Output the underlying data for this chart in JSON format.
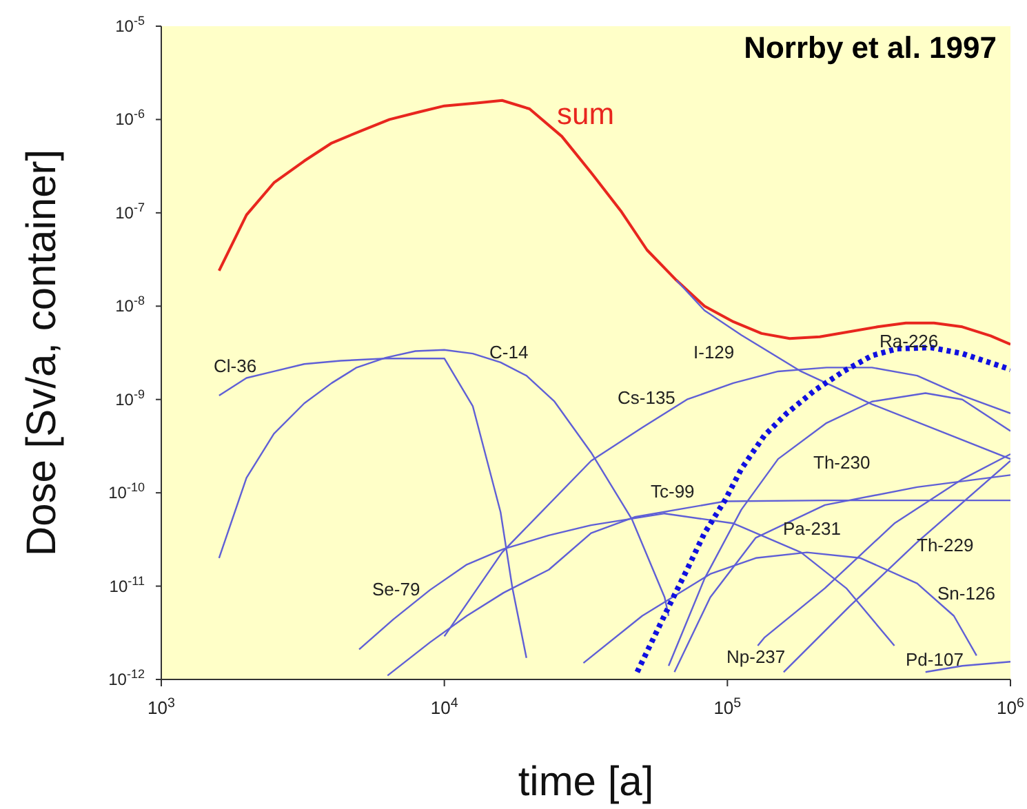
{
  "chart_data": {
    "type": "line",
    "xlabel": "time [a]",
    "ylabel": "Dose [Sv/a, container]",
    "log": "xy",
    "grid": false,
    "legend": false,
    "marker": "none",
    "xlim": [
      1000,
      1000000
    ],
    "xticks": [
      {
        "value": 1000,
        "label": "10$^{3}$"
      },
      {
        "value": 10000,
        "label": "10$^{4}$"
      },
      {
        "value": 100000,
        "label": "10$^{5}$"
      },
      {
        "value": 1000000,
        "label": "10$^{6}$"
      }
    ],
    "ylim": [
      1e-12,
      1e-05
    ],
    "yticks": [
      {
        "value": 1e-12,
        "label": "10$^{-12}$"
      },
      {
        "value": 1e-11,
        "label": "10$^{-11}$"
      },
      {
        "value": 1e-10,
        "label": "10$^{-10}$"
      },
      {
        "value": 1e-09,
        "label": "10$^{-9}$"
      },
      {
        "value": 1e-08,
        "label": "10$^{-8}$"
      },
      {
        "value": 1e-07,
        "label": "10$^{-7}$"
      },
      {
        "value": 1e-06,
        "label": "10$^{-6}$"
      },
      {
        "value": 1e-05,
        "label": "10$^{-5}$"
      }
    ],
    "annotations": [
      "Norrby et al. 1997"
    ],
    "series": [
      {
        "name": "sum",
        "color": "#e8261e",
        "line_style": "solid",
        "x": [
          1600,
          2000,
          2500,
          3200,
          4000,
          5100,
          6400,
          8100,
          10000,
          13000,
          16000,
          20000,
          26000,
          33000,
          42000,
          52000,
          66000,
          83000,
          105000,
          132000,
          166000,
          212000,
          339000,
          427000,
          537000,
          676000,
          851000,
          1000000
        ],
        "values": [
          2.4e-08,
          9.5e-08,
          2.1e-07,
          3.6e-07,
          5.6e-07,
          7.6e-07,
          1e-06,
          1.2e-06,
          1.4e-06,
          1.5e-06,
          1.6e-06,
          1.3e-06,
          6.6e-07,
          2.7e-07,
          1.05e-07,
          4e-08,
          1.9e-08,
          1e-08,
          6.8e-09,
          5.1e-09,
          4.5e-09,
          4.7e-09,
          6e-09,
          6.6e-09,
          6.6e-09,
          6e-09,
          4.8e-09,
          3.9e-09
        ]
      },
      {
        "name": "Cl-36",
        "color": "#5f5fd6",
        "line_style": "solid",
        "x": [
          1600,
          2000,
          2500,
          3200,
          4300,
          6200,
          10000,
          12600,
          15800,
          17400,
          19500
        ],
        "values": [
          1.1e-09,
          1.7e-09,
          2e-09,
          2.4e-09,
          2.6e-09,
          2.75e-09,
          2.75e-09,
          8.5e-10,
          6.2e-11,
          9.5e-12,
          1.7e-12
        ]
      },
      {
        "name": "C-14",
        "color": "#5f5fd6",
        "line_style": "solid",
        "x": [
          1600,
          2000,
          2500,
          3200,
          4000,
          4900,
          6200,
          7900,
          10000,
          12600,
          15800,
          19500,
          24500,
          33000,
          46000,
          60000,
          62000
        ],
        "values": [
          2e-11,
          1.45e-10,
          4.3e-10,
          9.1e-10,
          1.5e-09,
          2.2e-09,
          2.8e-09,
          3.3e-09,
          3.4e-09,
          3.1e-09,
          2.5e-09,
          1.8e-09,
          9.5e-10,
          2.7e-10,
          5.2e-11,
          7.6e-12,
          4.8e-12
        ]
      },
      {
        "name": "I-129",
        "color": "#5f5fd6",
        "line_style": "solid",
        "x": [
          66000,
          83000,
          112000,
          182000,
          324000,
          562000,
          1000000
        ],
        "values": [
          1.9e-08,
          9e-09,
          4.9e-09,
          2e-09,
          8.9e-10,
          4.6e-10,
          2.3e-10
        ]
      },
      {
        "name": "Cs-135",
        "color": "#5f5fd6",
        "line_style": "solid",
        "x": [
          10000,
          16000,
          33000,
          50000,
          72000,
          105000,
          151000,
          224000,
          324000,
          468000,
          676000,
          1000000
        ],
        "values": [
          2.9e-12,
          2.3e-11,
          2.2e-10,
          5e-10,
          1e-09,
          1.5e-09,
          2e-09,
          2.2e-09,
          2.2e-09,
          1.8e-09,
          1.1e-09,
          7.1e-10
        ]
      },
      {
        "name": "Th-230",
        "color": "#5f5fd6",
        "line_style": "solid",
        "x": [
          62000,
          83000,
          112000,
          151000,
          224000,
          324000,
          501000,
          676000,
          1000000
        ],
        "values": [
          1.4e-12,
          1.2e-11,
          6.6e-11,
          2.3e-10,
          5.6e-10,
          9.5e-10,
          1.17e-09,
          1e-09,
          4.6e-10
        ]
      },
      {
        "name": "Tc-99",
        "color": "#5f5fd6",
        "line_style": "solid",
        "x": [
          6300,
          8900,
          12000,
          16200,
          23400,
          33000,
          47000,
          98000,
          224000,
          1000000
        ],
        "values": [
          1.1e-12,
          2.5e-12,
          4.8e-12,
          8.5e-12,
          1.5e-11,
          3.7e-11,
          5.5e-11,
          8.1e-11,
          8.3e-11,
          8.3e-11
        ]
      },
      {
        "name": "Se-79",
        "color": "#5f5fd6",
        "line_style": "solid",
        "x": [
          5000,
          6600,
          8900,
          12000,
          16200,
          23400,
          33000,
          60000,
          105000,
          182000,
          263000,
          389000
        ],
        "values": [
          2.1e-12,
          4.4e-12,
          9.1e-12,
          1.7e-11,
          2.5e-11,
          3.5e-11,
          4.5e-11,
          6e-11,
          4.7e-11,
          2.3e-11,
          9.5e-12,
          2.3e-12
        ]
      },
      {
        "name": "Sn-126",
        "color": "#5f5fd6",
        "line_style": "solid",
        "x": [
          31000,
          50000,
          87000,
          126000,
          191000,
          295000,
          468000,
          631000,
          759000
        ],
        "values": [
          1.5e-12,
          4.8e-12,
          1.35e-11,
          2e-11,
          2.3e-11,
          2e-11,
          1.07e-11,
          4.8e-12,
          1.8e-12
        ]
      },
      {
        "name": "Pa-231",
        "color": "#5f5fd6",
        "line_style": "solid",
        "x": [
          65000,
          87000,
          126000,
          221000,
          468000,
          1000000
        ],
        "values": [
          1.2e-12,
          7.6e-12,
          3.3e-11,
          7.4e-11,
          1.15e-10,
          1.55e-10
        ]
      },
      {
        "name": "Np-237",
        "color": "#5f5fd6",
        "line_style": "solid",
        "x": [
          128000,
          135000,
          221000,
          389000,
          676000,
          1000000
        ],
        "values": [
          2.3e-12,
          2.8e-12,
          9.5e-12,
          4.7e-11,
          1.4e-10,
          2.6e-10
        ]
      },
      {
        "name": "Th-229",
        "color": "#5f5fd6",
        "line_style": "solid",
        "x": [
          158000,
          269000,
          468000,
          1000000
        ],
        "values": [
          1.2e-12,
          6e-12,
          2.95e-11,
          2.2e-10
        ]
      },
      {
        "name": "Pd-107",
        "color": "#5f5fd6",
        "line_style": "solid",
        "x": [
          501000,
          676000,
          1000000
        ],
        "values": [
          1.2e-12,
          1.4e-12,
          1.55e-12
        ]
      },
      {
        "name": "Ra-226",
        "color": "#1010e0",
        "line_style": "dotted",
        "x": [
          48000,
          62000,
          72000,
          83000,
          98000,
          112000,
          135000,
          162000,
          204000,
          257000,
          324000,
          398000,
          525000,
          676000,
          1000000
        ],
        "values": [
          1.2e-12,
          6e-12,
          1.5e-11,
          3.7e-11,
          8.3e-11,
          1.8e-10,
          4.1e-10,
          7.1e-10,
          1.26e-09,
          2e-09,
          2.95e-09,
          3.5e-09,
          3.6e-09,
          3.1e-09,
          2.1e-09
        ]
      }
    ]
  }
}
